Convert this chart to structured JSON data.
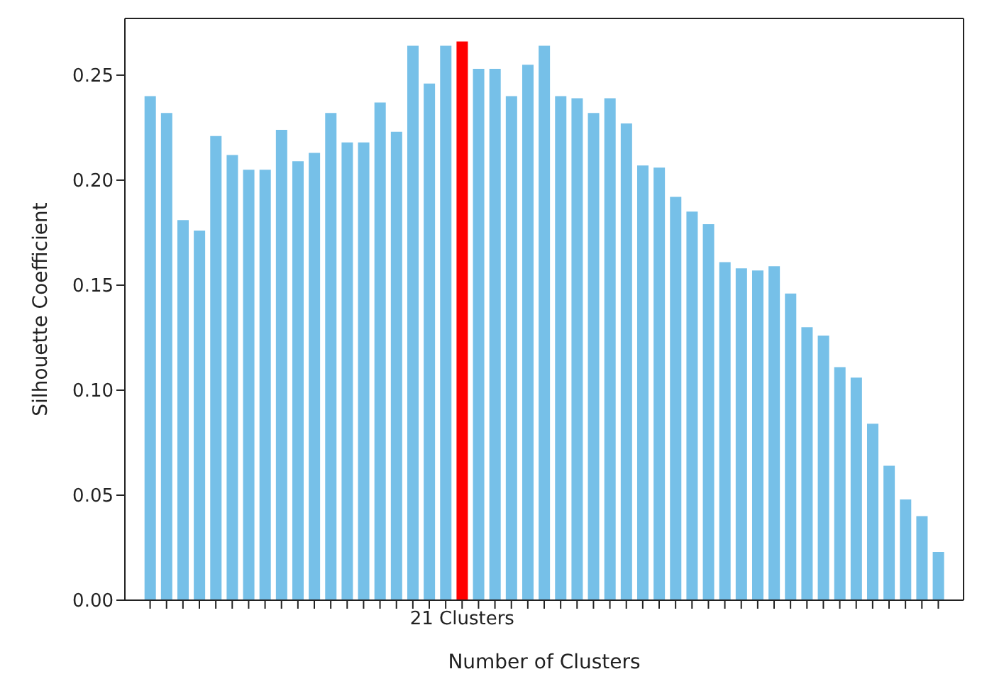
{
  "chart_data": {
    "type": "bar",
    "xlabel": "Number of Clusters",
    "ylabel": "Silhouette Coefficient",
    "categories": [
      null,
      null,
      null,
      null,
      null,
      null,
      null,
      null,
      null,
      null,
      null,
      null,
      null,
      null,
      null,
      null,
      null,
      null,
      null,
      "21 Clusters",
      null,
      null,
      null,
      null,
      null,
      null,
      null,
      null,
      null,
      null,
      null,
      null,
      null,
      null,
      null,
      null,
      null,
      null,
      null,
      null,
      null,
      null,
      null,
      null,
      null,
      null,
      null,
      null,
      null
    ],
    "values": [
      0.24,
      0.232,
      0.181,
      0.176,
      0.221,
      0.212,
      0.205,
      0.205,
      0.224,
      0.209,
      0.213,
      0.232,
      0.218,
      0.218,
      0.237,
      0.223,
      0.264,
      0.246,
      0.264,
      0.266,
      0.253,
      0.253,
      0.24,
      0.255,
      0.264,
      0.24,
      0.239,
      0.232,
      0.239,
      0.227,
      0.207,
      0.206,
      0.192,
      0.185,
      0.179,
      0.161,
      0.158,
      0.157,
      0.159,
      0.146,
      0.13,
      0.126,
      0.111,
      0.106,
      0.084,
      0.064,
      0.048,
      0.04,
      0.023
    ],
    "colors": [
      "#76c0e8",
      "#76c0e8",
      "#76c0e8",
      "#76c0e8",
      "#76c0e8",
      "#76c0e8",
      "#76c0e8",
      "#76c0e8",
      "#76c0e8",
      "#76c0e8",
      "#76c0e8",
      "#76c0e8",
      "#76c0e8",
      "#76c0e8",
      "#76c0e8",
      "#76c0e8",
      "#76c0e8",
      "#76c0e8",
      "#76c0e8",
      "#ff0000",
      "#76c0e8",
      "#76c0e8",
      "#76c0e8",
      "#76c0e8",
      "#76c0e8",
      "#76c0e8",
      "#76c0e8",
      "#76c0e8",
      "#76c0e8",
      "#76c0e8",
      "#76c0e8",
      "#76c0e8",
      "#76c0e8",
      "#76c0e8",
      "#76c0e8",
      "#76c0e8",
      "#76c0e8",
      "#76c0e8",
      "#76c0e8",
      "#76c0e8",
      "#76c0e8",
      "#76c0e8",
      "#76c0e8",
      "#76c0e8",
      "#76c0e8",
      "#76c0e8",
      "#76c0e8",
      "#76c0e8",
      "#76c0e8"
    ],
    "ylim": [
      0,
      0.277
    ],
    "yticks": [
      {
        "value": 0,
        "label": "0.00"
      },
      {
        "value": 0.05,
        "label": "0.05"
      },
      {
        "value": 0.1,
        "label": "0.10"
      },
      {
        "value": 0.15,
        "label": "0.15"
      },
      {
        "value": 0.2,
        "label": "0.20"
      },
      {
        "value": 0.25,
        "label": "0.25"
      }
    ],
    "grid": false
  }
}
